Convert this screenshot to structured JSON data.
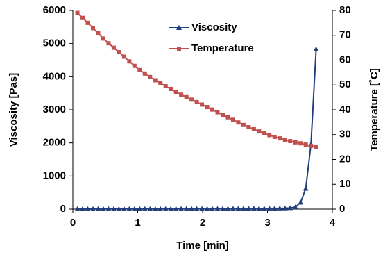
{
  "chart_data": {
    "type": "line",
    "xlabel": "Time [min]",
    "ylabel": "Viscosity [Pas]",
    "y2label": "Temperature [˚C]",
    "x": [
      0.07,
      0.15,
      0.23,
      0.31,
      0.39,
      0.47,
      0.55,
      0.63,
      0.71,
      0.79,
      0.87,
      0.95,
      1.03,
      1.11,
      1.19,
      1.27,
      1.35,
      1.43,
      1.51,
      1.59,
      1.67,
      1.75,
      1.83,
      1.91,
      1.99,
      2.07,
      2.15,
      2.23,
      2.31,
      2.39,
      2.47,
      2.55,
      2.63,
      2.71,
      2.79,
      2.87,
      2.95,
      3.03,
      3.11,
      3.19,
      3.27,
      3.35,
      3.43,
      3.51,
      3.59,
      3.67,
      3.75
    ],
    "xlim": [
      0,
      4
    ],
    "xticks": [
      0,
      1,
      2,
      3,
      4
    ],
    "ylim": [
      0,
      6000
    ],
    "yticks": [
      0,
      1000,
      2000,
      3000,
      4000,
      5000,
      6000
    ],
    "y2lim": [
      0,
      80
    ],
    "y2ticks": [
      0,
      10,
      20,
      30,
      40,
      50,
      60,
      70,
      80
    ],
    "legend": "top",
    "series": [
      {
        "name": "Viscosity",
        "color": "#203f7c",
        "marker": "triangle",
        "values": [
          3,
          3,
          3,
          3,
          4,
          4,
          4,
          4,
          4,
          5,
          5,
          5,
          5,
          5,
          6,
          6,
          6,
          6,
          7,
          7,
          7,
          8,
          8,
          8,
          9,
          9,
          10,
          10,
          11,
          12,
          13,
          14,
          15,
          16,
          17,
          18,
          19,
          20,
          22,
          24,
          27,
          35,
          60,
          200,
          620,
          1950,
          4830
        ]
      },
      {
        "name": "Temperature",
        "color": "#c0504d",
        "marker": "square",
        "axis": "y2",
        "values": [
          79.0,
          77.0,
          75.0,
          72.9,
          70.8,
          68.7,
          66.8,
          65.0,
          63.2,
          61.4,
          59.5,
          57.7,
          56.0,
          54.6,
          53.2,
          51.9,
          50.7,
          49.5,
          48.4,
          47.2,
          46.1,
          45.1,
          44.1,
          43.1,
          42.1,
          41.1,
          40.1,
          39.0,
          38.0,
          37.0,
          36.0,
          34.9,
          33.9,
          33.0,
          32.2,
          31.3,
          30.5,
          29.8,
          29.1,
          28.5,
          27.9,
          27.4,
          26.9,
          26.5,
          26.0,
          25.5,
          25.0
        ]
      }
    ]
  }
}
